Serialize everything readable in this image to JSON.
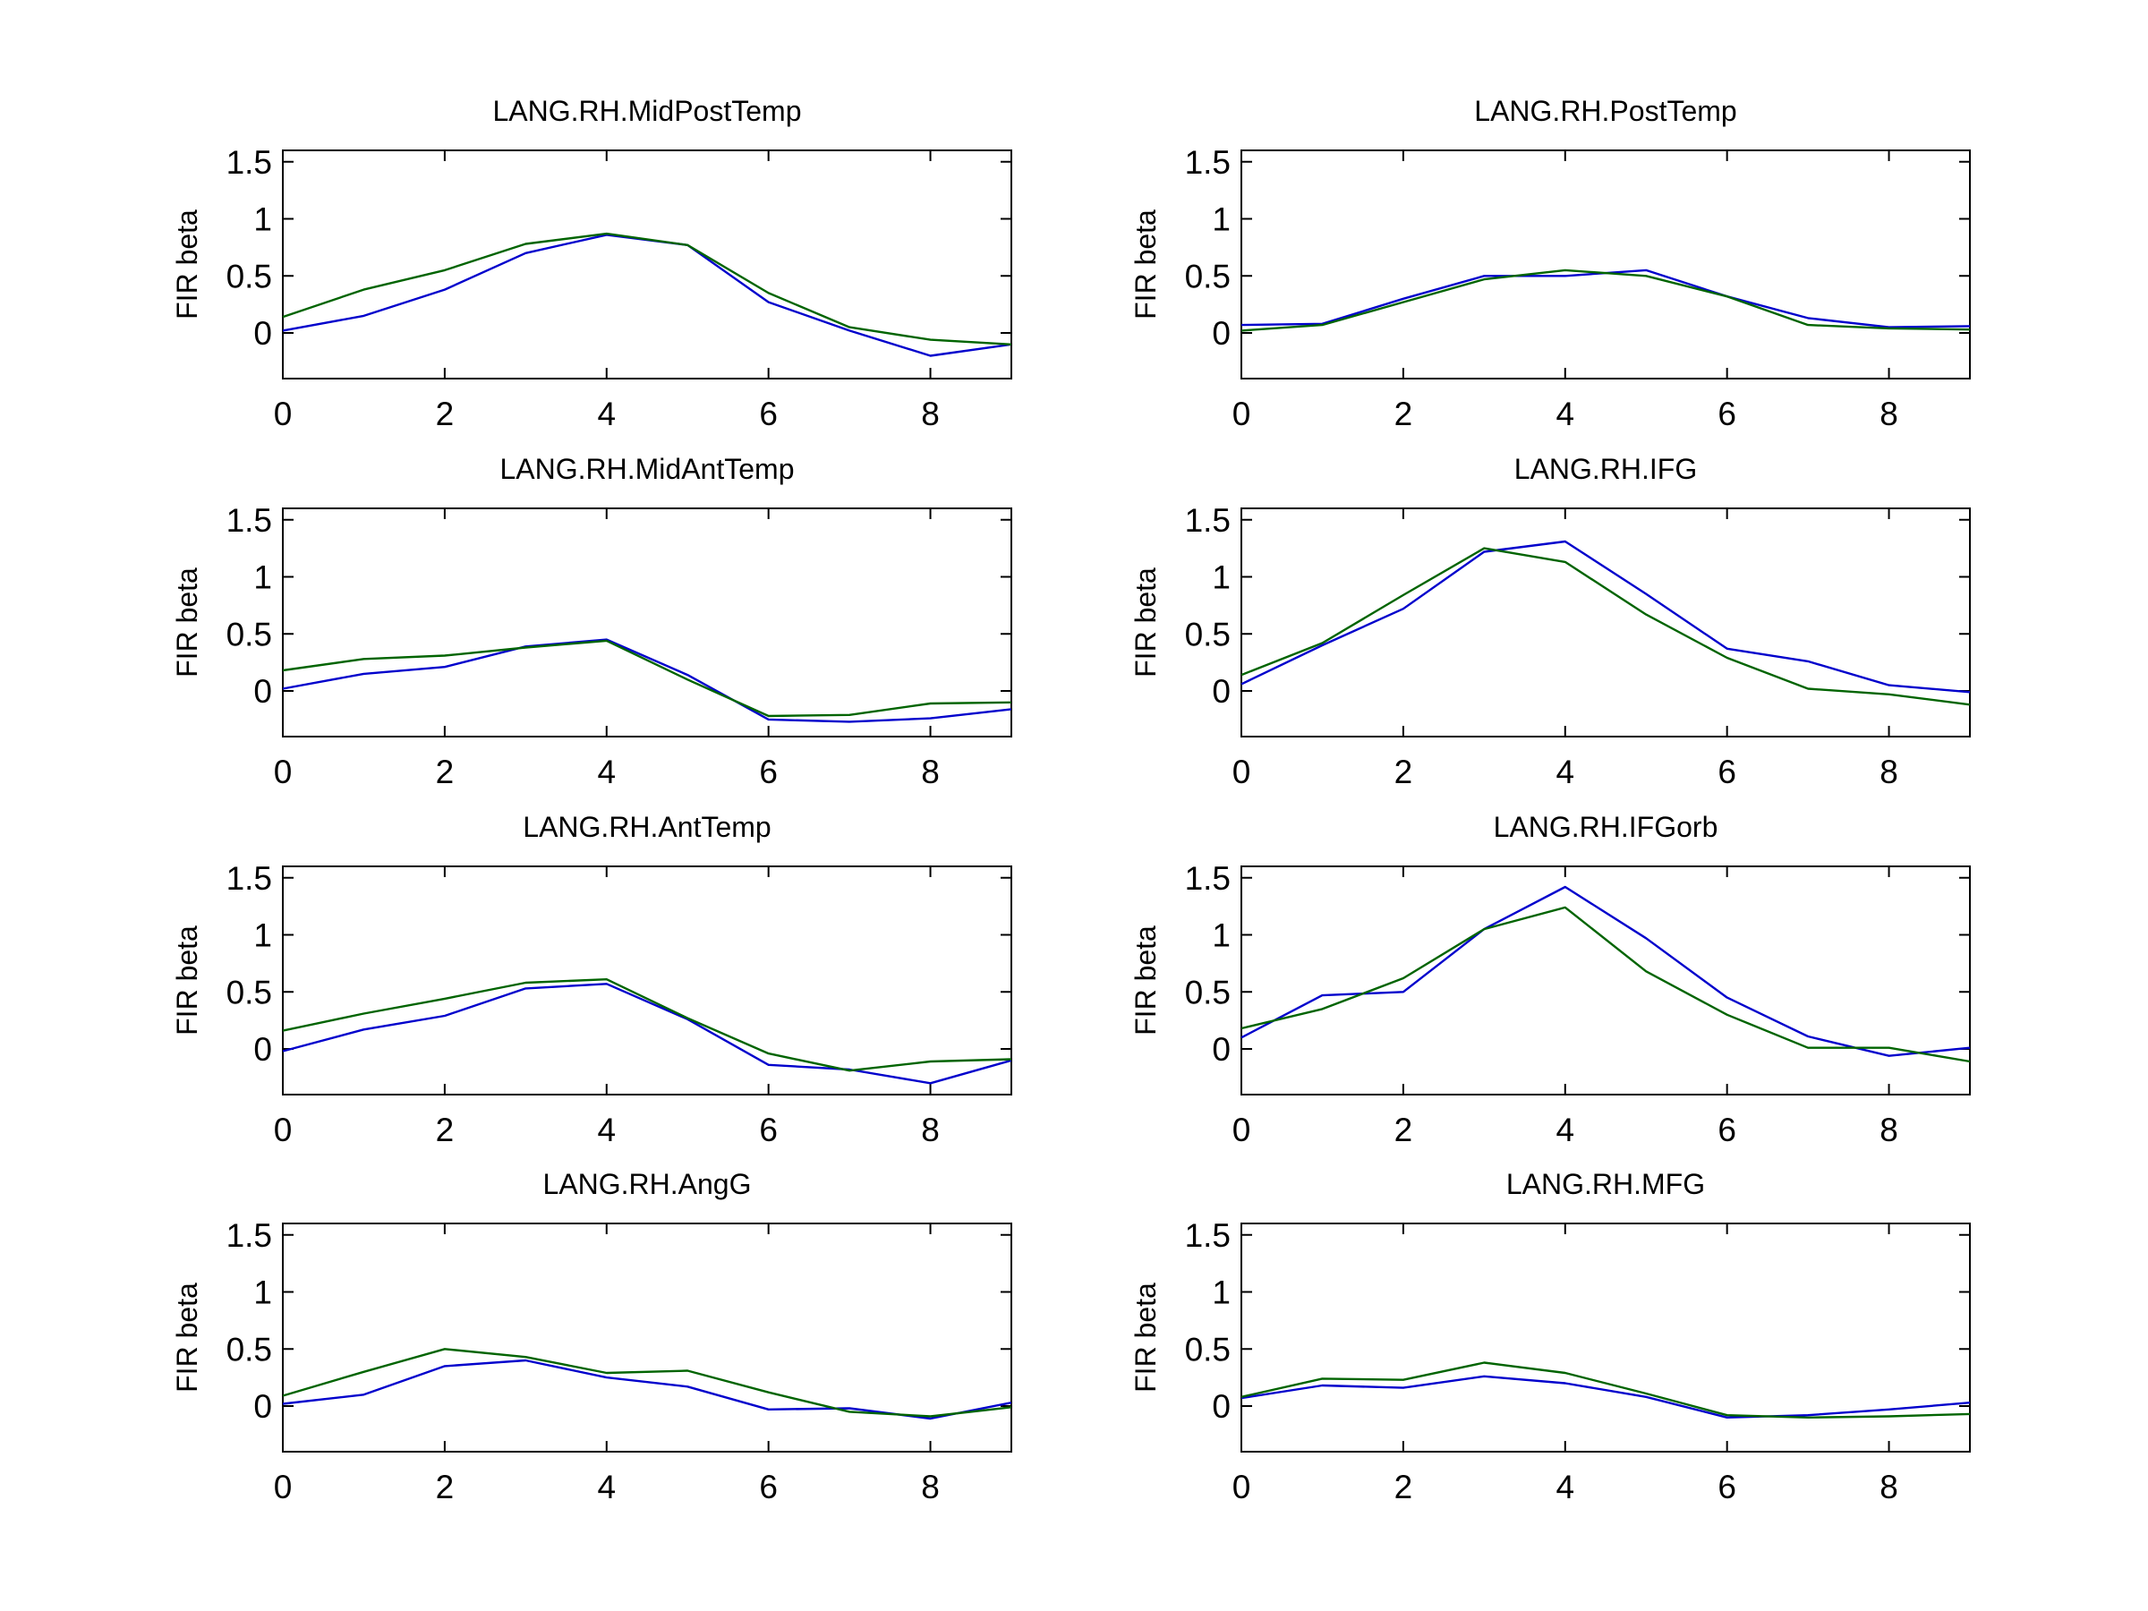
{
  "chart_data": [
    {
      "type": "line",
      "title": "LANG.RH.MidPostTemp",
      "ylabel": "FIR beta",
      "xlim": [
        0,
        9
      ],
      "ylim": [
        -0.4,
        1.6
      ],
      "xticks": [
        "0",
        "2",
        "4",
        "6",
        "8"
      ],
      "yticks": [
        "1.5",
        "1",
        "0.5",
        "0"
      ],
      "x": [
        0,
        1,
        2,
        3,
        4,
        5,
        6,
        7,
        8,
        9
      ],
      "series": [
        {
          "color": "#0000cc",
          "values": [
            0.02,
            0.15,
            0.38,
            0.7,
            0.86,
            0.77,
            0.27,
            0.02,
            -0.2,
            -0.1
          ]
        },
        {
          "color": "#006400",
          "values": [
            0.14,
            0.38,
            0.55,
            0.78,
            0.87,
            0.77,
            0.35,
            0.05,
            -0.06,
            -0.1
          ]
        }
      ]
    },
    {
      "type": "line",
      "title": "LANG.RH.PostTemp",
      "ylabel": "FIR beta",
      "xlim": [
        0,
        9
      ],
      "ylim": [
        -0.4,
        1.6
      ],
      "xticks": [
        "0",
        "2",
        "4",
        "6",
        "8"
      ],
      "yticks": [
        "1.5",
        "1",
        "0.5",
        "0"
      ],
      "x": [
        0,
        1,
        2,
        3,
        4,
        5,
        6,
        7,
        8,
        9
      ],
      "series": [
        {
          "color": "#0000cc",
          "values": [
            0.07,
            0.08,
            0.3,
            0.5,
            0.5,
            0.55,
            0.32,
            0.13,
            0.05,
            0.06
          ]
        },
        {
          "color": "#006400",
          "values": [
            0.02,
            0.07,
            0.27,
            0.47,
            0.55,
            0.5,
            0.32,
            0.07,
            0.04,
            0.03
          ]
        }
      ]
    },
    {
      "type": "line",
      "title": "LANG.RH.MidAntTemp",
      "ylabel": "FIR beta",
      "xlim": [
        0,
        9
      ],
      "ylim": [
        -0.4,
        1.6
      ],
      "xticks": [
        "0",
        "2",
        "4",
        "6",
        "8"
      ],
      "yticks": [
        "1.5",
        "1",
        "0.5",
        "0"
      ],
      "x": [
        0,
        1,
        2,
        3,
        4,
        5,
        6,
        7,
        8,
        9
      ],
      "series": [
        {
          "color": "#0000cc",
          "values": [
            0.02,
            0.15,
            0.21,
            0.39,
            0.45,
            0.14,
            -0.25,
            -0.27,
            -0.24,
            -0.16
          ]
        },
        {
          "color": "#006400",
          "values": [
            0.18,
            0.28,
            0.31,
            0.38,
            0.44,
            0.1,
            -0.22,
            -0.21,
            -0.11,
            -0.1
          ]
        }
      ]
    },
    {
      "type": "line",
      "title": "LANG.RH.IFG",
      "ylabel": "FIR beta",
      "xlim": [
        0,
        9
      ],
      "ylim": [
        -0.4,
        1.6
      ],
      "xticks": [
        "0",
        "2",
        "4",
        "6",
        "8"
      ],
      "yticks": [
        "1.5",
        "1",
        "0.5",
        "0"
      ],
      "x": [
        0,
        1,
        2,
        3,
        4,
        5,
        6,
        7,
        8,
        9
      ],
      "series": [
        {
          "color": "#0000cc",
          "values": [
            0.06,
            0.4,
            0.72,
            1.22,
            1.31,
            0.85,
            0.37,
            0.26,
            0.05,
            -0.01
          ]
        },
        {
          "color": "#006400",
          "values": [
            0.14,
            0.42,
            0.84,
            1.25,
            1.13,
            0.67,
            0.29,
            0.02,
            -0.03,
            -0.12
          ]
        }
      ]
    },
    {
      "type": "line",
      "title": "LANG.RH.AntTemp",
      "ylabel": "FIR beta",
      "xlim": [
        0,
        9
      ],
      "ylim": [
        -0.4,
        1.6
      ],
      "xticks": [
        "0",
        "2",
        "4",
        "6",
        "8"
      ],
      "yticks": [
        "1.5",
        "1",
        "0.5",
        "0"
      ],
      "x": [
        0,
        1,
        2,
        3,
        4,
        5,
        6,
        7,
        8,
        9
      ],
      "series": [
        {
          "color": "#0000cc",
          "values": [
            -0.02,
            0.17,
            0.29,
            0.53,
            0.57,
            0.26,
            -0.14,
            -0.18,
            -0.3,
            -0.1
          ]
        },
        {
          "color": "#006400",
          "values": [
            0.16,
            0.31,
            0.44,
            0.58,
            0.61,
            0.27,
            -0.04,
            -0.19,
            -0.11,
            -0.09
          ]
        }
      ]
    },
    {
      "type": "line",
      "title": "LANG.RH.IFGorb",
      "ylabel": "FIR beta",
      "xlim": [
        0,
        9
      ],
      "ylim": [
        -0.4,
        1.6
      ],
      "xticks": [
        "0",
        "2",
        "4",
        "6",
        "8"
      ],
      "yticks": [
        "1.5",
        "1",
        "0.5",
        "0"
      ],
      "x": [
        0,
        1,
        2,
        3,
        4,
        5,
        6,
        7,
        8,
        9
      ],
      "series": [
        {
          "color": "#0000cc",
          "values": [
            0.1,
            0.47,
            0.5,
            1.05,
            1.42,
            0.97,
            0.45,
            0.11,
            -0.06,
            0.01
          ]
        },
        {
          "color": "#006400",
          "values": [
            0.18,
            0.35,
            0.62,
            1.05,
            1.24,
            0.68,
            0.3,
            0.01,
            0.01,
            -0.11
          ]
        }
      ]
    },
    {
      "type": "line",
      "title": "LANG.RH.AngG",
      "ylabel": "FIR beta",
      "xlim": [
        0,
        9
      ],
      "ylim": [
        -0.4,
        1.6
      ],
      "xticks": [
        "0",
        "2",
        "4",
        "6",
        "8"
      ],
      "yticks": [
        "1.5",
        "1",
        "0.5",
        "0"
      ],
      "x": [
        0,
        1,
        2,
        3,
        4,
        5,
        6,
        7,
        8,
        9
      ],
      "series": [
        {
          "color": "#0000cc",
          "values": [
            0.02,
            0.1,
            0.35,
            0.4,
            0.25,
            0.17,
            -0.03,
            -0.02,
            -0.11,
            0.03
          ]
        },
        {
          "color": "#006400",
          "values": [
            0.09,
            0.3,
            0.5,
            0.43,
            0.29,
            0.31,
            0.12,
            -0.05,
            -0.09,
            -0.01
          ]
        }
      ]
    },
    {
      "type": "line",
      "title": "LANG.RH.MFG",
      "ylabel": "FIR beta",
      "xlim": [
        0,
        9
      ],
      "ylim": [
        -0.4,
        1.6
      ],
      "xticks": [
        "0",
        "2",
        "4",
        "6",
        "8"
      ],
      "yticks": [
        "1.5",
        "1",
        "0.5",
        "0"
      ],
      "x": [
        0,
        1,
        2,
        3,
        4,
        5,
        6,
        7,
        8,
        9
      ],
      "series": [
        {
          "color": "#0000cc",
          "values": [
            0.07,
            0.18,
            0.16,
            0.26,
            0.2,
            0.08,
            -0.1,
            -0.08,
            -0.03,
            0.03
          ]
        },
        {
          "color": "#006400",
          "values": [
            0.08,
            0.24,
            0.23,
            0.38,
            0.29,
            0.11,
            -0.08,
            -0.1,
            -0.09,
            -0.07
          ]
        }
      ]
    }
  ]
}
